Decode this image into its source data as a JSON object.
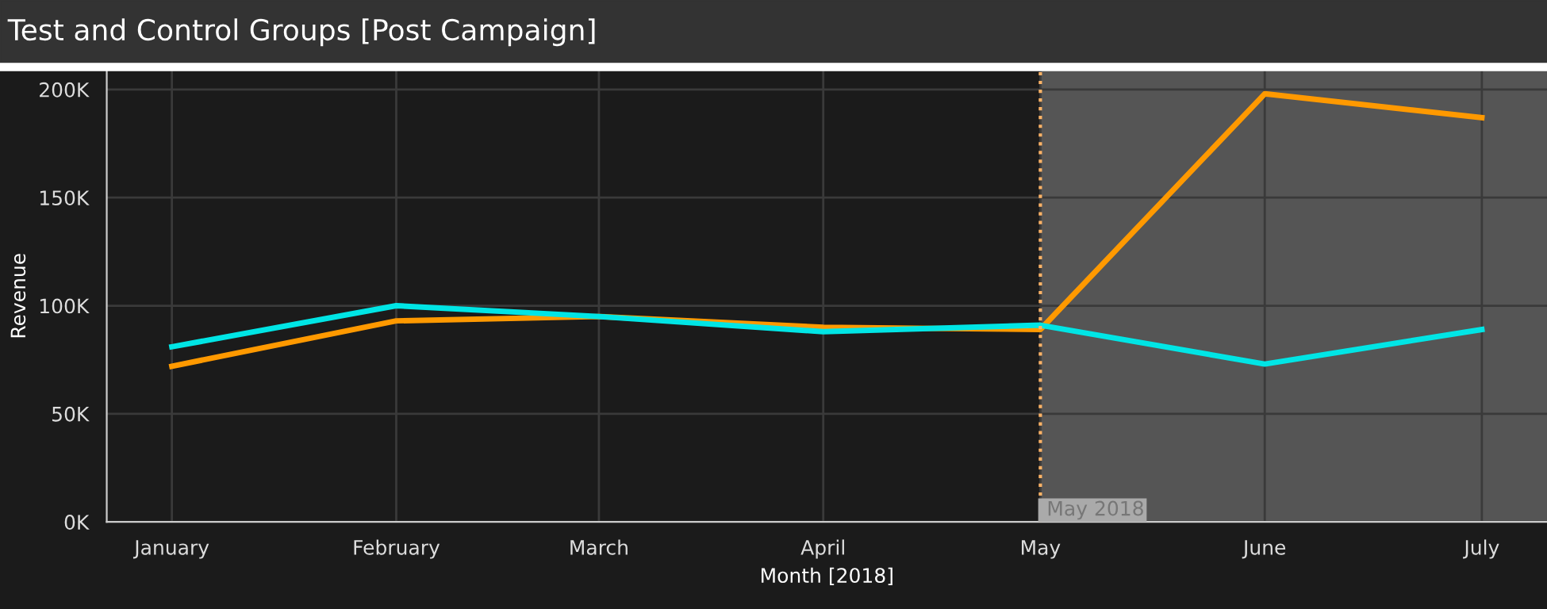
{
  "chart_data": {
    "type": "line",
    "title": "Test and Control Groups [Post Campaign]",
    "xlabel": "Month [2018]",
    "ylabel": "Revenue",
    "x": [
      "2018-01-01",
      "2018-02-01",
      "2018-03-01",
      "2018-04-01",
      "2018-05-01",
      "2018-06-01",
      "2018-07-01"
    ],
    "series": [
      {
        "color": "#ff9900",
        "values": [
          72000,
          93000,
          95000,
          90000,
          89000,
          198000,
          187000
        ]
      },
      {
        "color": "#00e5e5",
        "values": [
          81000,
          100000,
          95000,
          88000,
          91000,
          73000,
          89000
        ]
      }
    ],
    "xlim": [
      "2017-12-23",
      "2018-07-10"
    ],
    "xticks": [
      {
        "value": "2018-01-01",
        "label": "January"
      },
      {
        "value": "2018-02-01",
        "label": "February"
      },
      {
        "value": "2018-03-01",
        "label": "March"
      },
      {
        "value": "2018-04-01",
        "label": "April"
      },
      {
        "value": "2018-05-01",
        "label": "May"
      },
      {
        "value": "2018-06-01",
        "label": "June"
      },
      {
        "value": "2018-07-01",
        "label": "July"
      }
    ],
    "ylim": [
      0,
      209000
    ],
    "yticks": [
      {
        "value": 0,
        "label": "0K"
      },
      {
        "value": 50000,
        "label": "50K"
      },
      {
        "value": 100000,
        "label": "100K"
      },
      {
        "value": 150000,
        "label": "150K"
      },
      {
        "value": 200000,
        "label": "200K"
      }
    ],
    "ref_lines": [
      {
        "axis": "x",
        "value": "2018-05-01",
        "label": "May 2018",
        "color": "#ffb366",
        "line_style": "dotted"
      }
    ],
    "bands": [
      {
        "axis": "x",
        "from": "2018-05-01",
        "to": "2018-07-10",
        "color": "#555555"
      }
    ],
    "grid": true,
    "legend": false,
    "marker": "none",
    "line_style": "solid"
  }
}
